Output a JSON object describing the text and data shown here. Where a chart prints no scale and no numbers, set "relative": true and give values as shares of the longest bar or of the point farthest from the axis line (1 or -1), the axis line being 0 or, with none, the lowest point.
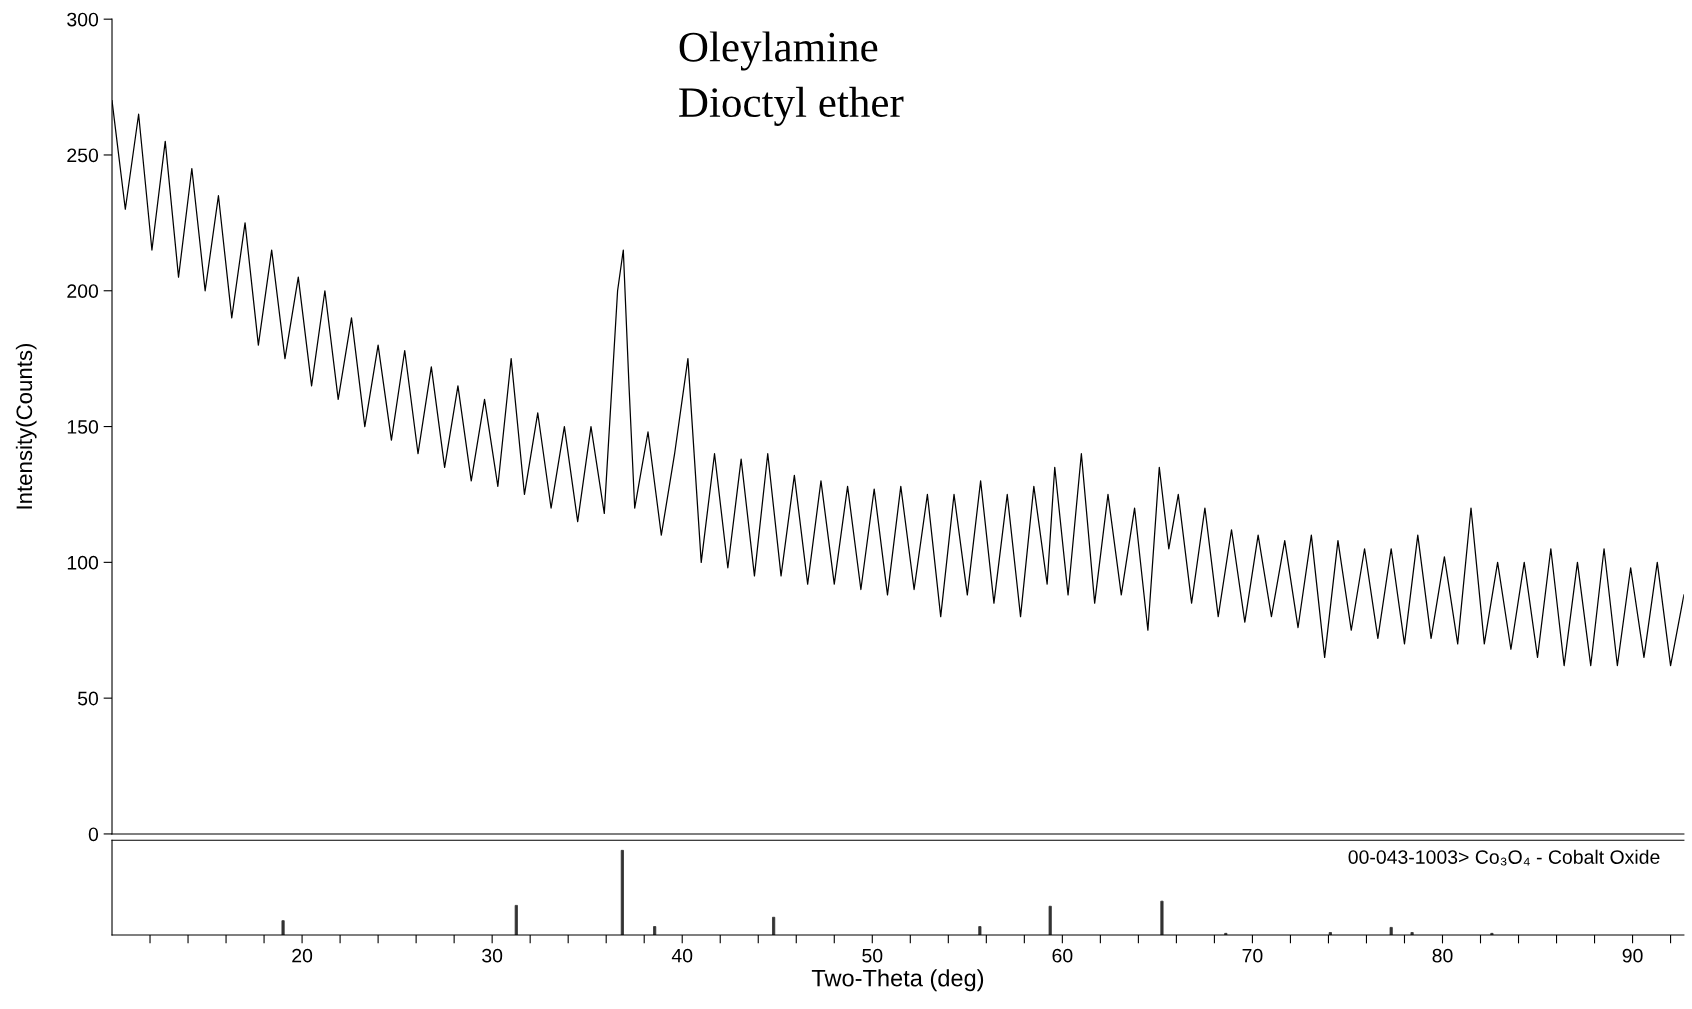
{
  "chart_data": [
    {
      "type": "line",
      "ylabel": "Intensity(Counts)",
      "annotations": [
        "Oleylamine",
        "Dioctyl ether"
      ],
      "x": [
        10.0,
        10.7,
        11.4,
        12.1,
        12.8,
        13.5,
        14.2,
        14.9,
        15.6,
        16.3,
        17.0,
        17.7,
        18.4,
        19.1,
        19.8,
        20.5,
        21.2,
        21.9,
        22.6,
        23.3,
        24.0,
        24.7,
        25.4,
        26.1,
        26.8,
        27.5,
        28.2,
        28.9,
        29.6,
        30.3,
        31.0,
        31.7,
        32.4,
        33.1,
        33.8,
        34.5,
        35.2,
        35.9,
        36.6,
        36.9,
        37.2,
        37.5,
        38.2,
        38.9,
        39.6,
        40.3,
        41.0,
        41.7,
        42.4,
        43.1,
        43.8,
        44.5,
        45.2,
        45.9,
        46.6,
        47.3,
        48.0,
        48.7,
        49.4,
        50.1,
        50.8,
        51.5,
        52.2,
        52.9,
        53.6,
        54.3,
        55.0,
        55.7,
        56.4,
        57.1,
        57.8,
        58.5,
        59.2,
        59.6,
        60.3,
        61.0,
        61.7,
        62.4,
        63.1,
        63.8,
        64.5,
        65.1,
        65.6,
        66.1,
        66.8,
        67.5,
        68.2,
        68.9,
        69.6,
        70.3,
        71.0,
        71.7,
        72.4,
        73.1,
        73.8,
        74.5,
        75.2,
        75.9,
        76.6,
        77.3,
        78.0,
        78.7,
        79.4,
        80.1,
        80.8,
        81.5,
        82.2,
        82.9,
        83.6,
        84.3,
        85.0,
        85.7,
        86.4,
        87.1,
        87.8,
        88.5,
        89.2,
        89.9,
        90.6,
        91.3,
        92.0,
        92.7
      ],
      "series": [
        {
          "color": "#000000",
          "values": [
            270,
            230,
            265,
            215,
            255,
            205,
            245,
            200,
            235,
            190,
            225,
            180,
            215,
            175,
            205,
            165,
            200,
            160,
            190,
            150,
            180,
            145,
            178,
            140,
            172,
            135,
            165,
            130,
            160,
            128,
            175,
            125,
            155,
            120,
            150,
            115,
            150,
            118,
            200,
            215,
            165,
            120,
            148,
            110,
            140,
            175,
            100,
            140,
            98,
            138,
            95,
            140,
            95,
            132,
            92,
            130,
            92,
            128,
            90,
            127,
            88,
            128,
            90,
            125,
            80,
            125,
            88,
            130,
            85,
            125,
            80,
            128,
            92,
            135,
            88,
            140,
            85,
            125,
            88,
            120,
            75,
            135,
            105,
            125,
            85,
            120,
            80,
            112,
            78,
            110,
            80,
            108,
            76,
            110,
            65,
            108,
            75,
            105,
            72,
            105,
            70,
            110,
            72,
            102,
            70,
            120,
            70,
            100,
            68,
            100,
            65,
            105,
            62,
            100,
            62,
            105,
            62,
            98,
            65,
            100,
            62,
            88
          ]
        }
      ],
      "xlim": [
        10,
        92.7
      ],
      "ylim": [
        0,
        300
      ],
      "yticks": [
        0,
        50,
        100,
        150,
        200,
        250,
        300
      ],
      "tick_labels": "y",
      "line_style": "solid"
    },
    {
      "type": "bar",
      "relative": true,
      "xlabel": "Two-Theta (deg)",
      "annotations": [
        "00-043-1003> Co₃O₄ - Cobalt Oxide"
      ],
      "x": [
        19.0,
        31.27,
        36.85,
        38.55,
        44.81,
        55.66,
        59.36,
        65.24,
        68.6,
        74.1,
        77.3,
        78.4,
        82.6
      ],
      "series": [
        {
          "color": "#333333",
          "values": [
            0.17,
            0.35,
            1.0,
            0.1,
            0.21,
            0.1,
            0.34,
            0.4,
            0.02,
            0.03,
            0.09,
            0.03,
            0.02
          ]
        }
      ],
      "xlim": [
        10,
        92.7
      ],
      "xticks": [
        {
          "value": 12,
          "label": null
        },
        {
          "value": 14,
          "label": null
        },
        {
          "value": 16,
          "label": null
        },
        {
          "value": 18,
          "label": null
        },
        20,
        {
          "value": 22,
          "label": null
        },
        {
          "value": 24,
          "label": null
        },
        {
          "value": 26,
          "label": null
        },
        {
          "value": 28,
          "label": null
        },
        30,
        {
          "value": 32,
          "label": null
        },
        {
          "value": 34,
          "label": null
        },
        {
          "value": 36,
          "label": null
        },
        {
          "value": 38,
          "label": null
        },
        40,
        {
          "value": 42,
          "label": null
        },
        {
          "value": 44,
          "label": null
        },
        {
          "value": 46,
          "label": null
        },
        {
          "value": 48,
          "label": null
        },
        50,
        {
          "value": 52,
          "label": null
        },
        {
          "value": 54,
          "label": null
        },
        {
          "value": 56,
          "label": null
        },
        {
          "value": 58,
          "label": null
        },
        60,
        {
          "value": 62,
          "label": null
        },
        {
          "value": 64,
          "label": null
        },
        {
          "value": 66,
          "label": null
        },
        {
          "value": 68,
          "label": null
        },
        70,
        {
          "value": 72,
          "label": null
        },
        {
          "value": 74,
          "label": null
        },
        {
          "value": 76,
          "label": null
        },
        {
          "value": 78,
          "label": null
        },
        80,
        {
          "value": 82,
          "label": null
        },
        {
          "value": 84,
          "label": null
        },
        {
          "value": 86,
          "label": null
        },
        {
          "value": 88,
          "label": null
        },
        90,
        {
          "value": 92,
          "label": null
        }
      ],
      "tick_labels": "x"
    }
  ]
}
